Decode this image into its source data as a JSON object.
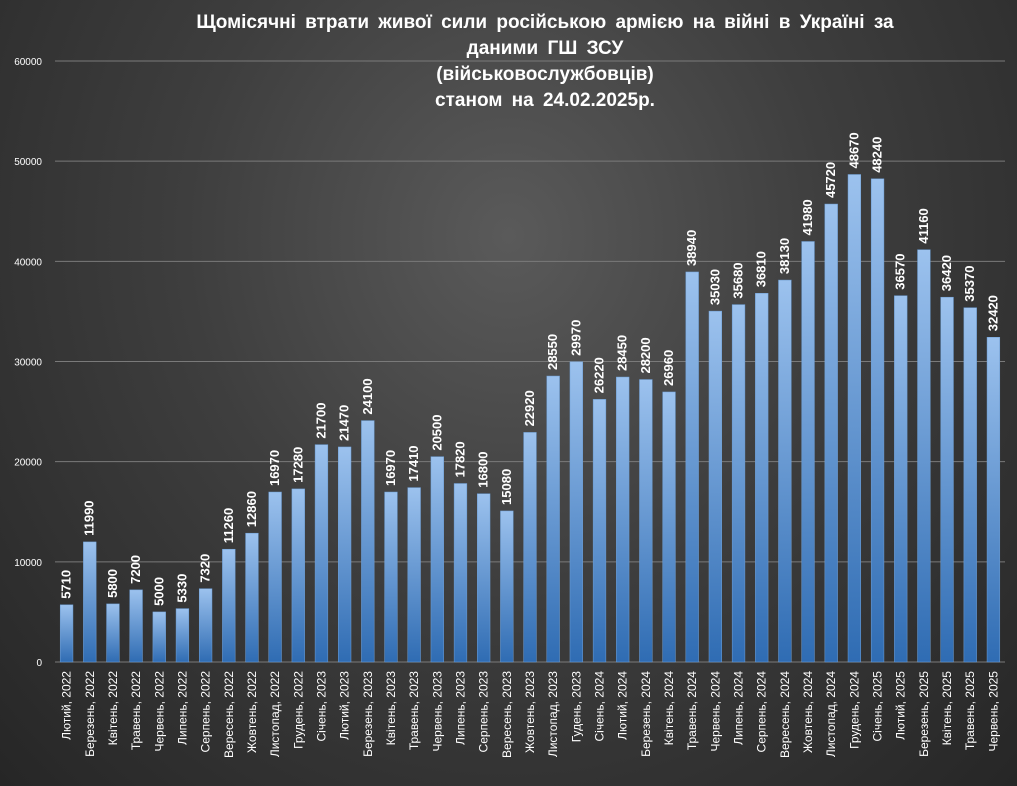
{
  "chart_data": {
    "type": "bar",
    "title_lines": [
      "Щомісячні  втрати живої сили російською  армією  на  війні  в Україні  за",
      "даними  ГШ ЗСУ",
      "(військовослужбовців)",
      "станом  на  24.02.2025р."
    ],
    "xlabel": "",
    "ylabel": "",
    "ylim": [
      0,
      60000
    ],
    "yticks": [
      "0",
      "10000",
      "20000",
      "30000",
      "40000",
      "50000",
      "60000"
    ],
    "grid": true,
    "legend": "none",
    "colors": {
      "bar_top": "#9cc2ee",
      "bar_bottom": "#2f6cb3",
      "grid": "#7a7a7a",
      "text": "#ffffff"
    },
    "categories": [
      "Лютий, 2022",
      "Березень, 2022",
      "Квітень, 2022",
      "Травень, 2022",
      "Червень, 2022",
      "Липень, 2022",
      "Серпень, 2022",
      "Вересень, 2022",
      "Жовтень, 2022",
      "Листопад, 2022",
      "Грудень, 2022",
      "Січень, 2023",
      "Лютий, 2023",
      "Березень, 2023",
      "Квітень, 2023",
      "Травень, 2023",
      "Червень, 2023",
      "Липень, 2023",
      "Серпень, 2023",
      "Вересень, 2023",
      "Жовтень, 2023",
      "Листопад, 2023",
      "Гудень, 2023",
      "Січень, 2024",
      "Лютий, 2024",
      "Березень, 2024",
      "Квітень, 2024",
      "Травень, 2024",
      "Червень, 2024",
      "Липень, 2024",
      "Серпень, 2024",
      "Вересень, 2024",
      "Жовтень, 2024",
      "Листопад, 2024",
      "Грудень, 2024",
      "Січень, 2025",
      "Лютий, 2025",
      "Березень, 2025",
      "Квітень, 2025",
      "Травень, 2025",
      "Червень, 2025"
    ],
    "values": [
      5710,
      11990,
      5800,
      7200,
      5000,
      5330,
      7320,
      11260,
      12860,
      16970,
      17280,
      21700,
      21470,
      24100,
      16970,
      17410,
      20500,
      17820,
      16800,
      15080,
      22920,
      28550,
      29970,
      26220,
      28450,
      28200,
      26960,
      38940,
      35030,
      35680,
      36810,
      38130,
      41980,
      45720,
      48670,
      48240,
      36570,
      41160,
      36420,
      35370,
      32420
    ]
  }
}
